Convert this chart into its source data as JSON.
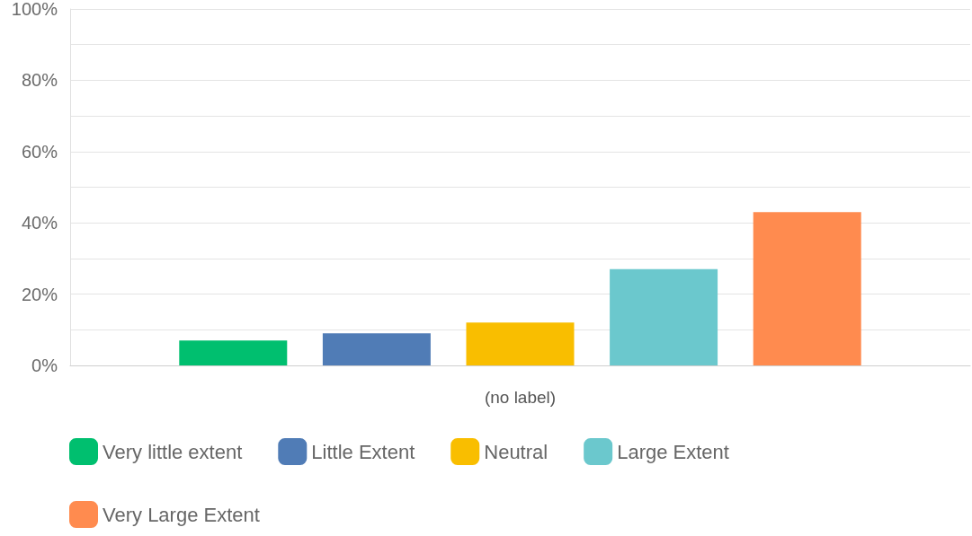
{
  "chart_data": {
    "type": "bar",
    "categories": [
      "(no label)"
    ],
    "series": [
      {
        "name": "Very little extent",
        "color": "#00bf6f",
        "values": [
          7
        ]
      },
      {
        "name": "Little Extent",
        "color": "#507cb6",
        "values": [
          9
        ]
      },
      {
        "name": "Neutral",
        "color": "#f9be00",
        "values": [
          12
        ]
      },
      {
        "name": "Large Extent",
        "color": "#6bc8cd",
        "values": [
          27
        ]
      },
      {
        "name": "Very Large Extent",
        "color": "#ff8b4f",
        "values": [
          43
        ]
      }
    ],
    "ylim": [
      0,
      100
    ],
    "yticks": [
      {
        "value": 0,
        "label": "0%"
      },
      {
        "value": 10,
        "label": null
      },
      {
        "value": 20,
        "label": "20%"
      },
      {
        "value": 30,
        "label": null
      },
      {
        "value": 40,
        "label": "40%"
      },
      {
        "value": 50,
        "label": null
      },
      {
        "value": 60,
        "label": "60%"
      },
      {
        "value": 70,
        "label": null
      },
      {
        "value": 80,
        "label": "80%"
      },
      {
        "value": 90,
        "label": null
      },
      {
        "value": 100,
        "label": "100%"
      }
    ],
    "grid": true,
    "legend": "bottom"
  }
}
